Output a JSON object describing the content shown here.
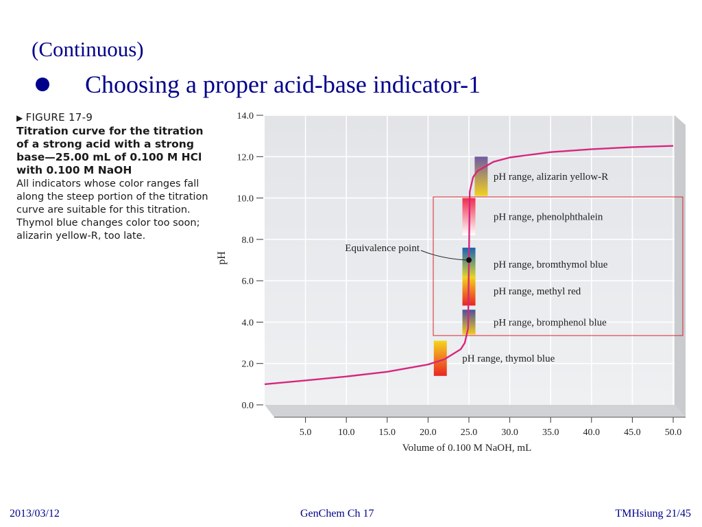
{
  "slide": {
    "subtitle": "(Continuous)",
    "bullet": "Choosing a proper acid-base indicator-1"
  },
  "caption": {
    "figure_label": "FIGURE 17-9",
    "title": "Titration curve for the titration of a strong acid with a strong base—25.00 mL of 0.100 M HCl with 0.100 M NaOH",
    "body": "All indicators whose color ranges fall along the steep portion of the titration curve are suitable for this titration. Thymol blue changes color too soon; alizarin yellow-R, too late."
  },
  "footer": {
    "date": "2013/03/12",
    "course": "GenChem Ch 17",
    "page": "TMHsiung 21/45"
  },
  "chart_data": {
    "type": "line",
    "xlabel": "Volume of 0.100 M NaOH, mL",
    "ylabel": "pH",
    "xlim": [
      0,
      50
    ],
    "ylim": [
      0,
      14
    ],
    "xticks": [
      "5.0",
      "10.0",
      "15.0",
      "20.0",
      "25.0",
      "30.0",
      "35.0",
      "40.0",
      "45.0",
      "50.0"
    ],
    "yticks": [
      "0.0",
      "2.0",
      "4.0",
      "6.0",
      "8.0",
      "10.0",
      "12.0",
      "14.0"
    ],
    "grid": true,
    "curve_color": "#d6267e",
    "series": [
      {
        "x": [
          0,
          5,
          10,
          15,
          20,
          22,
          24,
          24.5,
          24.9,
          25,
          25.1,
          25.5,
          26,
          28,
          30,
          35,
          40,
          45,
          50
        ],
        "y": [
          1.0,
          1.18,
          1.37,
          1.6,
          1.95,
          2.2,
          2.69,
          3.0,
          3.7,
          7.0,
          10.3,
          11.0,
          11.29,
          11.75,
          11.96,
          12.22,
          12.36,
          12.46,
          12.52
        ]
      }
    ],
    "indicators": [
      {
        "label": "pH range, alizarin yellow-R",
        "x_center": 26.5,
        "ph_low": 10.1,
        "ph_high": 12.0,
        "colors": [
          "#f2d21f",
          "#6e5aa4"
        ]
      },
      {
        "label": "pH range, phenolphthalein",
        "x_center": 25.0,
        "ph_low": 8.2,
        "ph_high": 10.0,
        "colors": [
          "#ffffff",
          "#ef2c4c"
        ]
      },
      {
        "label": "pH range, bromthymol blue",
        "x_center": 25.0,
        "ph_low": 6.0,
        "ph_high": 7.6,
        "colors": [
          "#f4e21a",
          "#1864b5"
        ]
      },
      {
        "label": "pH range, methyl red",
        "x_center": 25.0,
        "ph_low": 4.8,
        "ph_high": 6.2,
        "colors": [
          "#ea2424",
          "#f4d51c"
        ]
      },
      {
        "label": "pH range, bromphenol blue",
        "x_center": 25.0,
        "ph_low": 3.4,
        "ph_high": 4.6,
        "colors": [
          "#f2cc1c",
          "#4d4f9c"
        ]
      },
      {
        "label": "pH range, thymol blue",
        "x_center": 21.5,
        "ph_low": 1.4,
        "ph_high": 3.1,
        "colors": [
          "#ea2424",
          "#f4d51c"
        ]
      }
    ],
    "annotation": {
      "text": "Equivalence point",
      "x": 25.0,
      "y": 7.0
    },
    "highlight_box_color": "#d9252c"
  }
}
